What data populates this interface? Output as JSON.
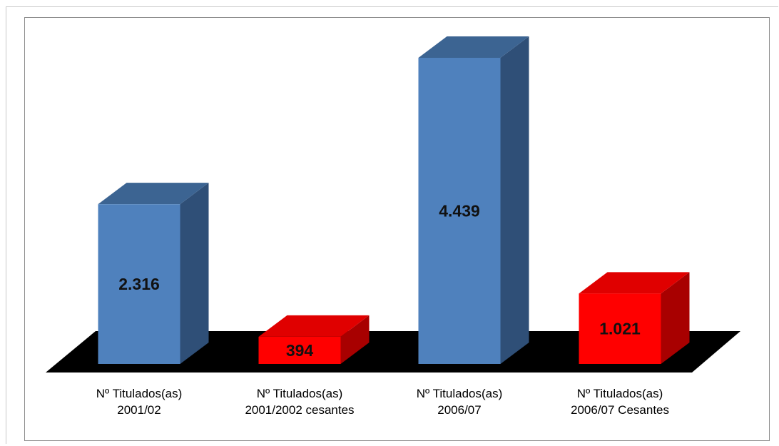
{
  "chart_data": {
    "type": "bar",
    "title": "",
    "xlabel": "",
    "ylabel": "",
    "ylim": [
      0,
      4439
    ],
    "grid": false,
    "legend": "none",
    "categories": [
      [
        "Nº Titulados(as)",
        "2001/02"
      ],
      [
        "Nº Titulados(as)",
        "2001/2002 cesantes"
      ],
      [
        "Nº Titulados(as)",
        "2006/07"
      ],
      [
        "Nº Titulados(as)",
        "2006/07 Cesantes"
      ]
    ],
    "values": [
      2316,
      394,
      4439,
      1021
    ],
    "value_labels": [
      "2.316",
      "394",
      "4.439",
      "1.021"
    ],
    "colors": {
      "blue_front": "#4f81bd",
      "blue_top": "#3c6492",
      "blue_side": "#2f4f77",
      "red_front": "#ff0000",
      "red_top": "#e00000",
      "red_side": "#a80000",
      "floor": "#000000"
    },
    "bar_colors": [
      "blue",
      "red",
      "blue",
      "red"
    ]
  }
}
